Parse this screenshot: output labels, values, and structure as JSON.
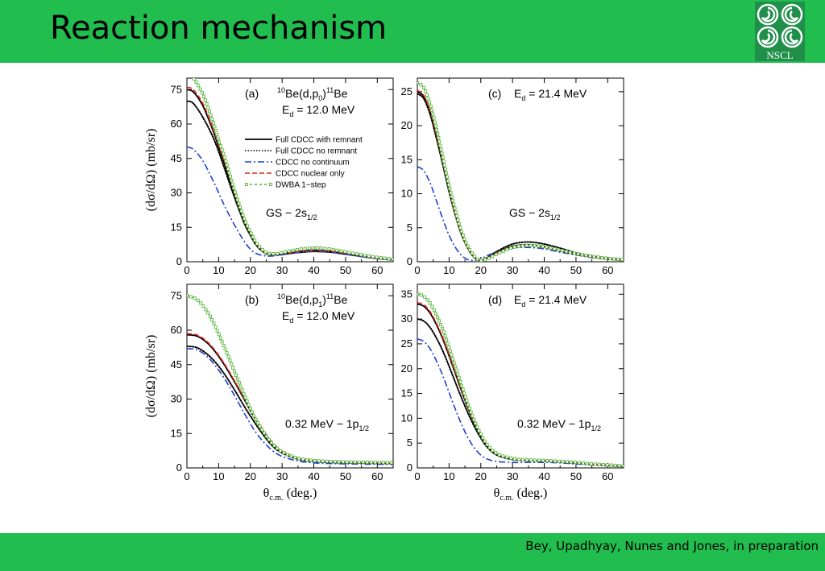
{
  "slide": {
    "title": "Reaction mechanism",
    "credit": "Bey, Upadhyay, Nunes and Jones, in preparation",
    "logo_text": "NSCL",
    "colors": {
      "bar": "#21bd4f",
      "logo": "#1f8f4a"
    }
  },
  "chart_data": [
    {
      "type": "line",
      "panel_label": "(a)",
      "reaction": "10Be(d,p0)11Be",
      "energy": "Ed = 12.0 MeV",
      "state": "GS − 2s1/2",
      "x_ticks": [
        0,
        10,
        20,
        30,
        40,
        50,
        60
      ],
      "y_ticks": [
        0,
        15,
        30,
        45,
        60,
        75
      ],
      "ylabel": "(dσ/dΩ) (mb/sr)",
      "xlim": [
        0,
        65
      ],
      "ylim": [
        0,
        80
      ],
      "legend": true,
      "series": [
        {
          "name": "Full CDCC with remnant",
          "color": "#000000",
          "style": "solid",
          "x": [
            0,
            2,
            5,
            8,
            10,
            12,
            15,
            18,
            20,
            22,
            25,
            28,
            30,
            35,
            40,
            45,
            50,
            55,
            60,
            65
          ],
          "y": [
            75,
            74,
            68,
            58,
            50,
            42,
            29,
            18,
            12,
            7,
            3.5,
            3,
            3.2,
            4,
            4.5,
            4.2,
            3.3,
            2.3,
            1.4,
            0.8
          ]
        },
        {
          "name": "Full CDCC no remnant",
          "color": "#000000",
          "style": "dotted",
          "x": [
            0,
            2,
            5,
            8,
            10,
            12,
            15,
            18,
            20,
            22,
            25,
            28,
            30,
            35,
            40,
            45,
            50,
            55,
            60,
            65
          ],
          "y": [
            70,
            69,
            63,
            55,
            48,
            40,
            28,
            17,
            11.5,
            7,
            3.5,
            3,
            3.4,
            4.5,
            5,
            4.6,
            3.5,
            2.5,
            1.5,
            0.9
          ]
        },
        {
          "name": "CDCC no continuum",
          "color": "#1f3fd0",
          "style": "dashdot",
          "x": [
            0,
            2,
            5,
            8,
            10,
            12,
            15,
            18,
            20,
            22,
            25,
            28,
            30,
            35,
            40,
            45,
            50,
            55,
            60,
            65
          ],
          "y": [
            50,
            49,
            44,
            36,
            30,
            24,
            16,
            9,
            5.5,
            3.5,
            2.5,
            2.6,
            3,
            4,
            4.5,
            4.1,
            3.2,
            2.2,
            1.3,
            0.7
          ]
        },
        {
          "name": "CDCC nuclear only",
          "color": "#e8231b",
          "style": "dashed",
          "x": [
            0,
            2,
            5,
            8,
            10,
            12,
            15,
            18,
            20,
            22,
            25,
            28,
            30,
            35,
            40,
            45,
            50,
            55,
            60,
            65
          ],
          "y": [
            76,
            75,
            69,
            59,
            51,
            43,
            30,
            18.5,
            12.5,
            7.5,
            3.7,
            3.2,
            3.5,
            4.4,
            4.9,
            4.6,
            3.7,
            2.6,
            1.6,
            0.9
          ]
        },
        {
          "name": "DWBA 1−step",
          "color": "#4caf2e",
          "style": "squares",
          "x": [
            0,
            2,
            5,
            8,
            10,
            12,
            15,
            18,
            20,
            22,
            25,
            28,
            30,
            35,
            40,
            45,
            50,
            55,
            60,
            65
          ],
          "y": [
            81,
            80,
            73,
            62,
            53,
            45,
            31,
            19,
            13,
            8,
            4,
            3.5,
            4,
            5.3,
            6,
            5.5,
            4.3,
            3,
            1.9,
            1.1
          ]
        }
      ]
    },
    {
      "type": "line",
      "panel_label": "(c)",
      "energy": "Ed = 21.4 MeV",
      "state": "GS − 2s1/2",
      "x_ticks": [
        0,
        10,
        20,
        30,
        40,
        50,
        60
      ],
      "y_ticks": [
        0,
        5,
        10,
        15,
        20,
        25
      ],
      "xlim": [
        0,
        65
      ],
      "ylim": [
        0,
        27
      ],
      "legend": false,
      "series": [
        {
          "name": "Full CDCC with remnant",
          "color": "#000000",
          "style": "solid",
          "x": [
            0,
            2,
            4,
            6,
            8,
            10,
            12,
            14,
            16,
            18,
            20,
            22,
            25,
            30,
            35,
            40,
            45,
            50,
            55,
            60,
            65
          ],
          "y": [
            25,
            24.3,
            22,
            18.5,
            14.5,
            10.5,
            7,
            4,
            2,
            0.7,
            0.2,
            0.5,
            1.3,
            2.3,
            2.5,
            2.2,
            1.6,
            1.1,
            0.7,
            0.4,
            0.2
          ]
        },
        {
          "name": "Full CDCC no remnant",
          "color": "#000000",
          "style": "dotted",
          "x": [
            0,
            2,
            4,
            6,
            8,
            10,
            12,
            14,
            16,
            18,
            20,
            22,
            25,
            30,
            35,
            40,
            45,
            50,
            55,
            60,
            65
          ],
          "y": [
            24.7,
            24,
            21.7,
            18.2,
            14.3,
            10.3,
            6.8,
            3.9,
            1.9,
            0.6,
            0.2,
            0.6,
            1.5,
            2.6,
            2.9,
            2.6,
            2,
            1.3,
            0.8,
            0.5,
            0.3
          ]
        },
        {
          "name": "CDCC no continuum",
          "color": "#1f3fd0",
          "style": "dashdot",
          "x": [
            0,
            2,
            4,
            6,
            8,
            10,
            12,
            14,
            16,
            18,
            20,
            22,
            25,
            30,
            35,
            40,
            45,
            50,
            55,
            60,
            65
          ],
          "y": [
            14,
            13.4,
            11.6,
            9,
            6.3,
            3.9,
            2.1,
            0.9,
            0.3,
            0.2,
            0.4,
            0.9,
            1.4,
            2,
            2.1,
            1.9,
            1.4,
            1,
            0.6,
            0.4,
            0.2
          ]
        },
        {
          "name": "CDCC nuclear only",
          "color": "#e8231b",
          "style": "dashed",
          "x": [
            0,
            2,
            4,
            6,
            8,
            10,
            12,
            14,
            16,
            18,
            20,
            22,
            25,
            30,
            35,
            40,
            45,
            50,
            55,
            60,
            65
          ],
          "y": [
            25.2,
            24.5,
            22.2,
            18.7,
            14.7,
            10.7,
            7.1,
            4.1,
            2,
            0.7,
            0.2,
            0.5,
            1.3,
            2.2,
            2.4,
            2.1,
            1.6,
            1.1,
            0.7,
            0.4,
            0.2
          ]
        },
        {
          "name": "DWBA 1−step",
          "color": "#4caf2e",
          "style": "squares",
          "x": [
            0,
            2,
            4,
            6,
            8,
            10,
            12,
            14,
            16,
            18,
            20,
            22,
            25,
            30,
            35,
            40,
            45,
            50,
            55,
            60,
            65
          ],
          "y": [
            26.3,
            25.6,
            23.2,
            19.6,
            15.4,
            11.2,
            7.5,
            4.4,
            2.2,
            0.8,
            0.2,
            0.4,
            1.1,
            2.1,
            2.4,
            2.2,
            1.7,
            1.2,
            0.8,
            0.5,
            0.3
          ]
        }
      ]
    },
    {
      "type": "line",
      "panel_label": "(b)",
      "reaction": "10Be(d,p1)11Be",
      "energy": "Ed = 12.0 MeV",
      "state": "0.32 MeV − 1p1/2",
      "x_ticks": [
        0,
        10,
        20,
        30,
        40,
        50,
        60
      ],
      "y_ticks": [
        0,
        15,
        30,
        45,
        60,
        75
      ],
      "ylabel": "(dσ/dΩ) (mb/sr)",
      "xlabel": "θc.m. (deg.)",
      "xlim": [
        0,
        65
      ],
      "ylim": [
        0,
        80
      ],
      "legend": false,
      "series": [
        {
          "name": "Full CDCC with remnant",
          "color": "#000000",
          "style": "solid",
          "x": [
            0,
            3,
            6,
            9,
            12,
            15,
            18,
            21,
            24,
            27,
            30,
            35,
            40,
            45,
            50,
            55,
            60,
            65
          ],
          "y": [
            58,
            57.5,
            55,
            50.5,
            44.5,
            37.5,
            30,
            22.5,
            16,
            10.5,
            7,
            4,
            3,
            2.5,
            2.3,
            2.2,
            2.1,
            2
          ]
        },
        {
          "name": "Full CDCC no remnant",
          "color": "#000000",
          "style": "dotted",
          "x": [
            0,
            3,
            6,
            9,
            12,
            15,
            18,
            21,
            24,
            27,
            30,
            35,
            40,
            45,
            50,
            55,
            60,
            65
          ],
          "y": [
            53,
            52.5,
            50,
            46,
            40.5,
            34,
            27,
            20.5,
            14.5,
            9.5,
            6.5,
            3.8,
            2.8,
            2.4,
            2.2,
            2.1,
            2,
            1.9
          ]
        },
        {
          "name": "CDCC no continuum",
          "color": "#1f3fd0",
          "style": "dashdot",
          "x": [
            0,
            3,
            6,
            9,
            12,
            15,
            18,
            21,
            24,
            27,
            30,
            35,
            40,
            45,
            50,
            55,
            60,
            65
          ],
          "y": [
            52,
            51.5,
            49,
            44.5,
            38.5,
            31.5,
            24,
            17,
            11.5,
            7.5,
            5,
            3,
            2.2,
            1.9,
            1.8,
            1.7,
            1.6,
            1.5
          ]
        },
        {
          "name": "CDCC nuclear only",
          "color": "#e8231b",
          "style": "dashed",
          "x": [
            0,
            3,
            6,
            9,
            12,
            15,
            18,
            21,
            24,
            27,
            30,
            35,
            40,
            45,
            50,
            55,
            60,
            65
          ],
          "y": [
            58.5,
            58,
            55.5,
            51,
            45,
            38,
            30.5,
            23,
            16.5,
            11,
            7.3,
            4.2,
            3.1,
            2.6,
            2.4,
            2.3,
            2.2,
            2.1
          ]
        },
        {
          "name": "DWBA 1−step",
          "color": "#4caf2e",
          "style": "squares",
          "x": [
            0,
            3,
            6,
            9,
            12,
            15,
            18,
            21,
            24,
            27,
            30,
            35,
            40,
            45,
            50,
            55,
            60,
            65
          ],
          "y": [
            75,
            73.5,
            69,
            61.5,
            52,
            42,
            32,
            23,
            16,
            10.5,
            7,
            4.2,
            3.2,
            2.8,
            2.6,
            2.5,
            2.4,
            2.3
          ]
        }
      ]
    },
    {
      "type": "line",
      "panel_label": "(d)",
      "energy": "Ed = 21.4 MeV",
      "state": "0.32 MeV − 1p1/2",
      "x_ticks": [
        0,
        10,
        20,
        30,
        40,
        50,
        60
      ],
      "y_ticks": [
        0,
        5,
        10,
        15,
        20,
        25,
        30,
        35
      ],
      "xlabel": "θc.m. (deg.)",
      "xlim": [
        0,
        65
      ],
      "ylim": [
        0,
        37
      ],
      "legend": false,
      "series": [
        {
          "name": "Full CDCC with remnant",
          "color": "#000000",
          "style": "solid",
          "x": [
            0,
            2,
            4,
            6,
            8,
            10,
            12,
            14,
            16,
            18,
            20,
            22,
            25,
            30,
            35,
            40,
            45,
            50,
            55,
            60,
            65
          ],
          "y": [
            33,
            32.6,
            31.2,
            28.9,
            26,
            22.6,
            19,
            15.4,
            12,
            9,
            6.5,
            4.5,
            2.7,
            1.7,
            1.5,
            1.4,
            1.2,
            1,
            0.7,
            0.5,
            0.3
          ]
        },
        {
          "name": "Full CDCC no remnant",
          "color": "#000000",
          "style": "dotted",
          "x": [
            0,
            2,
            4,
            6,
            8,
            10,
            12,
            14,
            16,
            18,
            20,
            22,
            25,
            30,
            35,
            40,
            45,
            50,
            55,
            60,
            65
          ],
          "y": [
            30,
            29.6,
            28.3,
            26.2,
            23.6,
            20.5,
            17.2,
            14,
            11,
            8.3,
            6,
            4.2,
            2.6,
            1.7,
            1.5,
            1.4,
            1.2,
            1,
            0.7,
            0.5,
            0.3
          ]
        },
        {
          "name": "CDCC no continuum",
          "color": "#1f3fd0",
          "style": "dashdot",
          "x": [
            0,
            2,
            4,
            6,
            8,
            10,
            12,
            14,
            16,
            18,
            20,
            22,
            25,
            30,
            35,
            40,
            45,
            50,
            55,
            60,
            65
          ],
          "y": [
            26,
            25.5,
            24,
            21.6,
            18.6,
            15.2,
            11.8,
            8.7,
            6,
            4,
            2.6,
            1.8,
            1.3,
            1.1,
            1.1,
            1.1,
            1,
            0.8,
            0.6,
            0.4,
            0.3
          ]
        },
        {
          "name": "CDCC nuclear only",
          "color": "#e8231b",
          "style": "dashed",
          "x": [
            0,
            2,
            4,
            6,
            8,
            10,
            12,
            14,
            16,
            18,
            20,
            22,
            25,
            30,
            35,
            40,
            45,
            50,
            55,
            60,
            65
          ],
          "y": [
            33.3,
            32.9,
            31.5,
            29.2,
            26.3,
            22.9,
            19.3,
            15.7,
            12.2,
            9.2,
            6.6,
            4.6,
            2.8,
            1.8,
            1.5,
            1.4,
            1.2,
            1,
            0.7,
            0.5,
            0.3
          ]
        },
        {
          "name": "DWBA 1−step",
          "color": "#4caf2e",
          "style": "squares",
          "x": [
            0,
            2,
            4,
            6,
            8,
            10,
            12,
            14,
            16,
            18,
            20,
            22,
            25,
            30,
            35,
            40,
            45,
            50,
            55,
            60,
            65
          ],
          "y": [
            35,
            34.6,
            33.2,
            30.9,
            27.9,
            24.3,
            20.4,
            16.5,
            12.8,
            9.5,
            6.8,
            4.7,
            2.9,
            1.9,
            1.6,
            1.5,
            1.3,
            1.1,
            0.8,
            0.6,
            0.4
          ]
        }
      ]
    }
  ]
}
